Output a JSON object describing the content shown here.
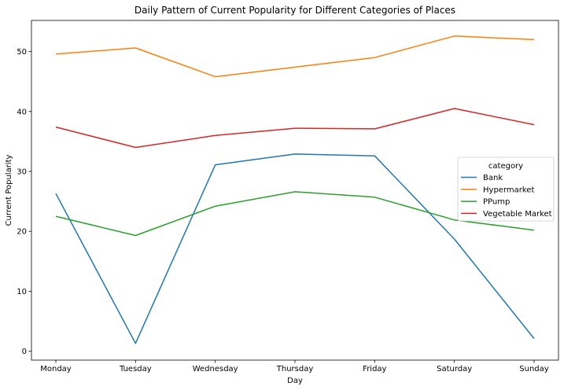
{
  "chart_data": {
    "type": "line",
    "title": "Daily Pattern of Current Popularity for Different Categories of Places",
    "xlabel": "Day",
    "ylabel": "Current Popularity",
    "categories": [
      "Monday",
      "Tuesday",
      "Wednesday",
      "Thursday",
      "Friday",
      "Saturday",
      "Sunday"
    ],
    "ylim": [
      -1.5,
      55.2
    ],
    "yticks": [
      0,
      10,
      20,
      30,
      40,
      50
    ],
    "grid": false,
    "legend": {
      "title": "category",
      "placement": "center-right"
    },
    "series": [
      {
        "name": "Bank",
        "color": "#1f77b4",
        "values": [
          26.3,
          1.3,
          31.1,
          32.9,
          32.6,
          18.7,
          2.1
        ]
      },
      {
        "name": "Hypermarket",
        "color": "#ff7f0e",
        "values": [
          49.6,
          50.6,
          45.8,
          47.4,
          49.0,
          52.6,
          52.0
        ]
      },
      {
        "name": "PPump",
        "color": "#2ca02c",
        "values": [
          22.5,
          19.3,
          24.2,
          26.6,
          25.7,
          21.9,
          20.2
        ]
      },
      {
        "name": "Vegetable Market",
        "color": "#d62728",
        "values": [
          37.4,
          34.0,
          36.0,
          37.2,
          37.1,
          40.5,
          37.8
        ]
      }
    ]
  }
}
